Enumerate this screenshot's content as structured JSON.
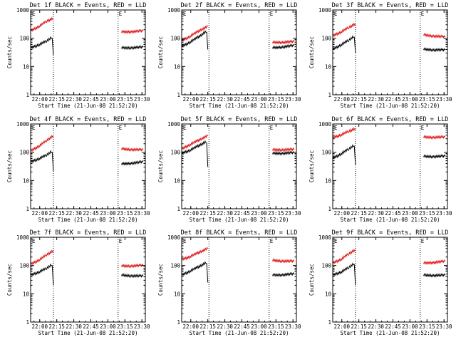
{
  "figure": {
    "background": "#ffffff",
    "axis_color": "#000000",
    "series_colors": {
      "events": "#000000",
      "lld": "#dd1111"
    }
  },
  "chart_data": [
    {
      "type": "line",
      "title": "Det 1f BLACK = Events, RED = LLD",
      "xlabel": "Start Time (21-Jun-08 21:52:20)",
      "ylabel": "Counts/sec",
      "yscale": "log",
      "ylim": [
        1,
        1000
      ],
      "xlim": [
        "21:52",
        "23:33"
      ],
      "xticks": [
        "22:00",
        "22:15",
        "22:30",
        "22:45",
        "23:00",
        "23:15",
        "23:30"
      ],
      "yticks": [
        "1",
        "10",
        "100",
        "1000"
      ],
      "markers": [
        {
          "x": "22:12",
          "label": ""
        },
        {
          "x": "23:09",
          "label": "E"
        }
      ],
      "marker_corner_label": "E",
      "series": [
        {
          "color": "#000000",
          "segments": [
            {
              "t": [
                "21:52",
                "22:00",
                "22:06",
                "22:11",
                "22:12"
              ],
              "v": [
                45,
                60,
                80,
                110,
                25
              ]
            },
            {
              "t": [
                "23:12",
                "23:31"
              ],
              "v": [
                45,
                48
              ]
            }
          ]
        },
        {
          "color": "#dd1111",
          "segments": [
            {
              "t": [
                "21:52",
                "22:00",
                "22:06",
                "22:12"
              ],
              "v": [
                180,
                270,
                400,
                500
              ]
            },
            {
              "t": [
                "23:12",
                "23:31"
              ],
              "v": [
                165,
                180
              ]
            }
          ]
        }
      ]
    },
    {
      "type": "line",
      "title": "Det 2f BLACK = Events, RED = LLD",
      "xlabel": "Start Time (21-Jun-08 21:52:20)",
      "ylabel": "Counts/sec",
      "yscale": "log",
      "ylim": [
        1,
        1000
      ],
      "xlim": [
        "21:52",
        "23:33"
      ],
      "xticks": [
        "22:00",
        "22:15",
        "22:30",
        "22:45",
        "23:00",
        "23:15",
        "23:30"
      ],
      "yticks": [
        "1",
        "10",
        "100",
        "1000"
      ],
      "markers": [
        {
          "x": "22:16",
          "label": ""
        },
        {
          "x": "23:09",
          "label": "E"
        }
      ],
      "marker_corner_label": "E",
      "series": [
        {
          "color": "#000000",
          "segments": [
            {
              "t": [
                "21:52",
                "22:00",
                "22:08",
                "22:14",
                "22:15"
              ],
              "v": [
                50,
                75,
                120,
                180,
                40
              ]
            },
            {
              "t": [
                "23:12",
                "23:31"
              ],
              "v": [
                45,
                55
              ]
            }
          ]
        },
        {
          "color": "#dd1111",
          "segments": [
            {
              "t": [
                "21:52",
                "22:00",
                "22:08",
                "22:15"
              ],
              "v": [
                80,
                120,
                190,
                260
              ]
            },
            {
              "t": [
                "23:12",
                "23:31"
              ],
              "v": [
                70,
                75
              ]
            }
          ]
        }
      ]
    },
    {
      "type": "line",
      "title": "Det 3f BLACK = Events, RED = LLD",
      "xlabel": "Start Time (21-Jun-08 21:52:20)",
      "ylabel": "Counts/sec",
      "yscale": "log",
      "ylim": [
        1,
        1000
      ],
      "xlim": [
        "21:52",
        "23:33"
      ],
      "xticks": [
        "22:00",
        "22:15",
        "22:30",
        "22:45",
        "23:00",
        "23:15",
        "23:30"
      ],
      "yticks": [
        "1",
        "10",
        "100",
        "1000"
      ],
      "markers": [
        {
          "x": "22:12",
          "label": ""
        },
        {
          "x": "23:09",
          "label": "E"
        }
      ],
      "marker_corner_label": "E",
      "series": [
        {
          "color": "#000000",
          "segments": [
            {
              "t": [
                "21:52",
                "22:00",
                "22:06",
                "22:11",
                "22:12"
              ],
              "v": [
                40,
                60,
                85,
                120,
                30
              ]
            },
            {
              "t": [
                "23:12",
                "23:31"
              ],
              "v": [
                40,
                38
              ]
            }
          ]
        },
        {
          "color": "#dd1111",
          "segments": [
            {
              "t": [
                "21:52",
                "22:00",
                "22:06",
                "22:12"
              ],
              "v": [
                120,
                170,
                240,
                320
              ]
            },
            {
              "t": [
                "23:12",
                "23:31"
              ],
              "v": [
                130,
                110
              ]
            }
          ]
        }
      ]
    },
    {
      "type": "line",
      "title": "Det 4f BLACK = Events, RED = LLD",
      "xlabel": "Start Time (21-Jun-08 21:52:20)",
      "ylabel": "Counts/sec",
      "yscale": "log",
      "ylim": [
        1,
        1000
      ],
      "xlim": [
        "21:52",
        "23:33"
      ],
      "xticks": [
        "22:00",
        "22:15",
        "22:30",
        "22:45",
        "23:00",
        "23:15",
        "23:30"
      ],
      "yticks": [
        "1",
        "10",
        "100",
        "1000"
      ],
      "markers": [
        {
          "x": "22:12",
          "label": ""
        },
        {
          "x": "23:09",
          "label": "E"
        }
      ],
      "marker_corner_label": "E",
      "series": [
        {
          "color": "#000000",
          "segments": [
            {
              "t": [
                "21:52",
                "22:00",
                "22:06",
                "22:11",
                "22:12"
              ],
              "v": [
                45,
                60,
                80,
                110,
                22
              ]
            },
            {
              "t": [
                "23:12",
                "23:31"
              ],
              "v": [
                38,
                45
              ]
            }
          ]
        },
        {
          "color": "#dd1111",
          "segments": [
            {
              "t": [
                "21:52",
                "22:00",
                "22:06",
                "22:12"
              ],
              "v": [
                110,
                170,
                260,
                380
              ]
            },
            {
              "t": [
                "23:12",
                "23:31"
              ],
              "v": [
                130,
                120
              ]
            }
          ]
        }
      ]
    },
    {
      "type": "line",
      "title": "Det 5f BLACK = Events, RED = LLD",
      "xlabel": "Start Time (21-Jun-08 21:52:20)",
      "ylabel": "Counts/sec",
      "yscale": "log",
      "ylim": [
        1,
        1000
      ],
      "xlim": [
        "21:52",
        "23:33"
      ],
      "xticks": [
        "22:00",
        "22:15",
        "22:30",
        "22:45",
        "23:00",
        "23:15",
        "23:30"
      ],
      "yticks": [
        "1",
        "10",
        "100",
        "1000"
      ],
      "markers": [
        {
          "x": "22:16",
          "label": ""
        },
        {
          "x": "23:09",
          "label": "E"
        }
      ],
      "marker_corner_label": "E",
      "series": [
        {
          "color": "#000000",
          "segments": [
            {
              "t": [
                "21:52",
                "22:00",
                "22:08",
                "22:14",
                "22:15"
              ],
              "v": [
                90,
                120,
                180,
                240,
                30
              ]
            },
            {
              "t": [
                "23:12",
                "23:31"
              ],
              "v": [
                90,
                95
              ]
            }
          ]
        },
        {
          "color": "#dd1111",
          "segments": [
            {
              "t": [
                "21:52",
                "22:00",
                "22:08",
                "22:15"
              ],
              "v": [
                130,
                190,
                280,
                380
              ]
            },
            {
              "t": [
                "23:12",
                "23:31"
              ],
              "v": [
                120,
                125
              ]
            }
          ]
        }
      ]
    },
    {
      "type": "line",
      "title": "Det 6f BLACK = Events, RED = LLD",
      "xlabel": "Start Time (21-Jun-08 21:52:20)",
      "ylabel": "Counts/sec",
      "yscale": "log",
      "ylim": [
        1,
        1000
      ],
      "xlim": [
        "21:52",
        "23:33"
      ],
      "xticks": [
        "22:00",
        "22:15",
        "22:30",
        "22:45",
        "23:00",
        "23:15",
        "23:30"
      ],
      "yticks": [
        "1",
        "10",
        "100",
        "1000"
      ],
      "markers": [
        {
          "x": "22:12",
          "label": ""
        },
        {
          "x": "23:09",
          "label": "E"
        }
      ],
      "marker_corner_label": "E",
      "series": [
        {
          "color": "#000000",
          "segments": [
            {
              "t": [
                "21:52",
                "22:00",
                "22:06",
                "22:11",
                "22:12"
              ],
              "v": [
                60,
                90,
                130,
                180,
                35
              ]
            },
            {
              "t": [
                "23:12",
                "23:31"
              ],
              "v": [
                70,
                72
              ]
            }
          ]
        },
        {
          "color": "#dd1111",
          "segments": [
            {
              "t": [
                "21:52",
                "22:00",
                "22:06",
                "22:12"
              ],
              "v": [
                320,
                420,
                550,
                680
              ]
            },
            {
              "t": [
                "23:12",
                "23:31"
              ],
              "v": [
                340,
                340
              ]
            }
          ]
        }
      ]
    },
    {
      "type": "line",
      "title": "Det 7f BLACK = Events, RED = LLD",
      "xlabel": "Start Time (21-Jun-08 21:52:20)",
      "ylabel": "Counts/sec",
      "yscale": "log",
      "ylim": [
        1,
        1000
      ],
      "xlim": [
        "21:52",
        "23:33"
      ],
      "xticks": [
        "22:00",
        "22:15",
        "22:30",
        "22:45",
        "23:00",
        "23:15",
        "23:30"
      ],
      "yticks": [
        "1",
        "10",
        "100",
        "1000"
      ],
      "markers": [
        {
          "x": "22:12",
          "label": ""
        },
        {
          "x": "23:09",
          "label": "E"
        }
      ],
      "marker_corner_label": "E",
      "series": [
        {
          "color": "#000000",
          "segments": [
            {
              "t": [
                "21:52",
                "22:00",
                "22:06",
                "22:11",
                "22:12"
              ],
              "v": [
                45,
                60,
                80,
                110,
                20
              ]
            },
            {
              "t": [
                "23:12",
                "23:31"
              ],
              "v": [
                45,
                42
              ]
            }
          ]
        },
        {
          "color": "#dd1111",
          "segments": [
            {
              "t": [
                "21:52",
                "22:00",
                "22:06",
                "22:12"
              ],
              "v": [
                110,
                160,
                240,
                330
              ]
            },
            {
              "t": [
                "23:12",
                "23:31"
              ],
              "v": [
                95,
                100
              ]
            }
          ]
        }
      ]
    },
    {
      "type": "line",
      "title": "Det 8f BLACK = Events, RED = LLD",
      "xlabel": "Start Time (21-Jun-08 21:52:20)",
      "ylabel": "Counts/sec",
      "yscale": "log",
      "ylim": [
        1,
        1000
      ],
      "xlim": [
        "21:52",
        "23:33"
      ],
      "xticks": [
        "22:00",
        "22:15",
        "22:30",
        "22:45",
        "23:00",
        "23:15",
        "23:30"
      ],
      "yticks": [
        "1",
        "10",
        "100",
        "1000"
      ],
      "markers": [
        {
          "x": "22:16",
          "label": ""
        },
        {
          "x": "23:09",
          "label": "E"
        }
      ],
      "marker_corner_label": "E",
      "series": [
        {
          "color": "#000000",
          "segments": [
            {
              "t": [
                "21:52",
                "22:00",
                "22:08",
                "22:14",
                "22:15"
              ],
              "v": [
                45,
                65,
                95,
                130,
                25
              ]
            },
            {
              "t": [
                "23:12",
                "23:31"
              ],
              "v": [
                45,
                50
              ]
            }
          ]
        },
        {
          "color": "#dd1111",
          "segments": [
            {
              "t": [
                "21:52",
                "22:00",
                "22:08",
                "22:15"
              ],
              "v": [
                160,
                210,
                300,
                400
              ]
            },
            {
              "t": [
                "23:12",
                "23:31"
              ],
              "v": [
                150,
                140
              ]
            }
          ]
        }
      ]
    },
    {
      "type": "line",
      "title": "Det 9f BLACK = Events, RED = LLD",
      "xlabel": "Start Time (21-Jun-08 21:52:20)",
      "ylabel": "Counts/sec",
      "yscale": "log",
      "ylim": [
        1,
        1000
      ],
      "xlim": [
        "21:52",
        "23:33"
      ],
      "xticks": [
        "22:00",
        "22:15",
        "22:30",
        "22:45",
        "23:00",
        "23:15",
        "23:30"
      ],
      "yticks": [
        "1",
        "10",
        "100",
        "1000"
      ],
      "markers": [
        {
          "x": "22:12",
          "label": ""
        },
        {
          "x": "23:09",
          "label": "E"
        }
      ],
      "marker_corner_label": "E",
      "series": [
        {
          "color": "#000000",
          "segments": [
            {
              "t": [
                "21:52",
                "22:00",
                "22:06",
                "22:11",
                "22:12"
              ],
              "v": [
                45,
                60,
                85,
                120,
                20
              ]
            },
            {
              "t": [
                "23:12",
                "23:31"
              ],
              "v": [
                45,
                45
              ]
            }
          ]
        },
        {
          "color": "#dd1111",
          "segments": [
            {
              "t": [
                "21:52",
                "22:00",
                "22:06",
                "22:12"
              ],
              "v": [
                120,
                170,
                260,
                360
              ]
            },
            {
              "t": [
                "23:12",
                "23:31"
              ],
              "v": [
                120,
                140
              ]
            }
          ]
        }
      ]
    }
  ]
}
